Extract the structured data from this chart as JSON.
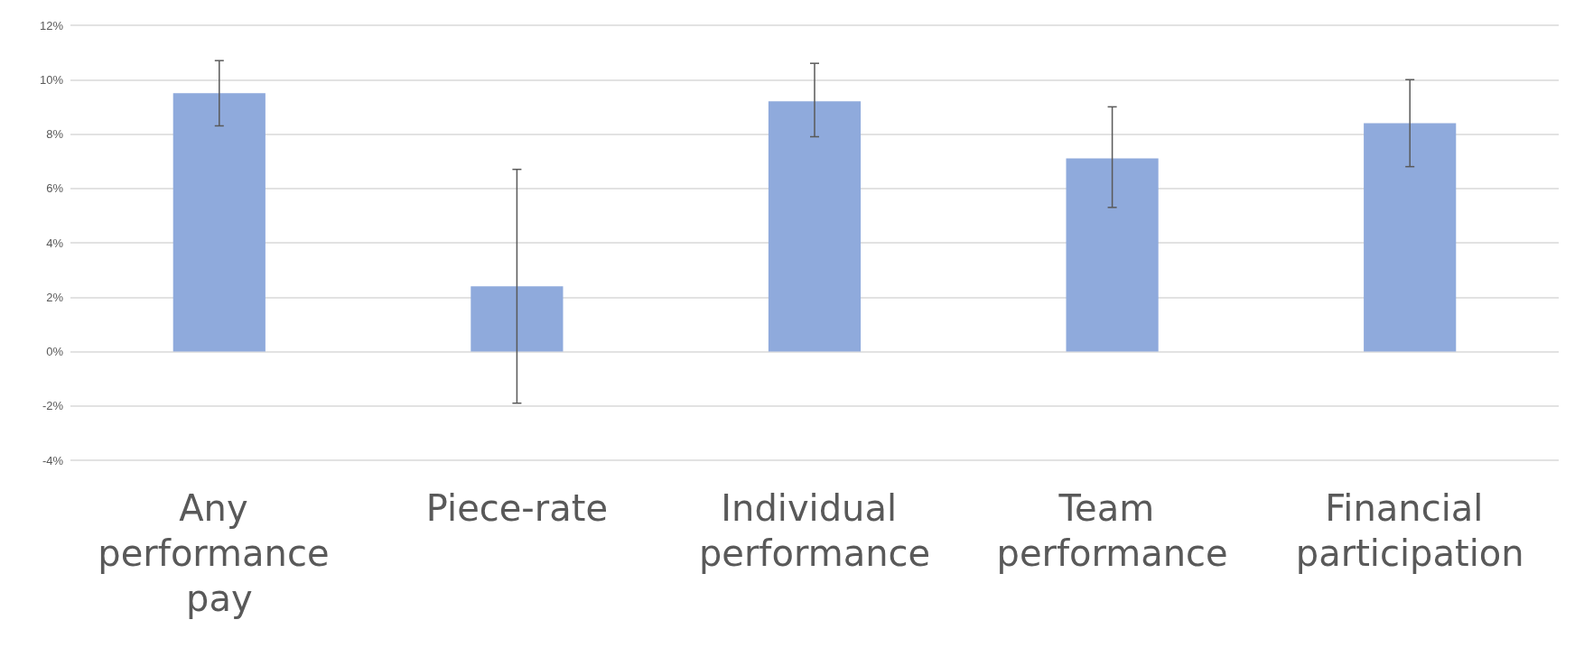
{
  "chart_data": {
    "type": "bar",
    "categories": [
      "Any performance pay",
      "Piece-rate",
      "Individual performance",
      "Team performance",
      "Financial participation"
    ],
    "values": [
      9.5,
      2.4,
      9.2,
      7.1,
      8.4
    ],
    "errors": [
      [
        8.3,
        10.7
      ],
      [
        -1.9,
        6.7
      ],
      [
        7.9,
        10.6
      ],
      [
        5.3,
        9.0
      ],
      [
        6.8,
        10.0
      ]
    ],
    "color": "#8faadc",
    "ylim": [
      -4,
      12
    ],
    "yticks": [
      {
        "value": -4,
        "label": "-4%"
      },
      {
        "value": -2,
        "label": "-2%"
      },
      {
        "value": 0,
        "label": "0%"
      },
      {
        "value": 2,
        "label": "2%"
      },
      {
        "value": 4,
        "label": "4%"
      },
      {
        "value": 6,
        "label": "6%"
      },
      {
        "value": 8,
        "label": "8%"
      },
      {
        "value": 10,
        "label": "10%"
      },
      {
        "value": 12,
        "label": "12%"
      }
    ],
    "grid": "y"
  }
}
